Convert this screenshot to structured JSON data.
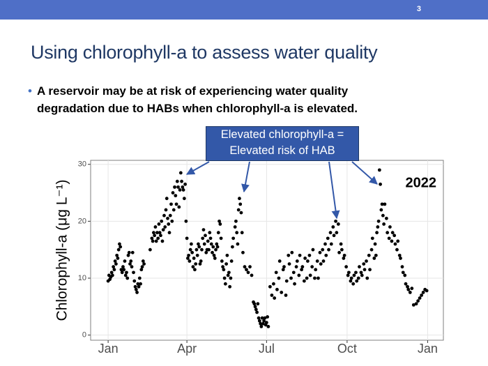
{
  "slide_number": "3",
  "title": "Using chlorophyll-a to assess water quality",
  "bullet": [
    "A reservoir may be at risk of experiencing water quality",
    "degradation due to HABs when chlorophyll-a is elevated."
  ],
  "callout": [
    "Elevated chlorophyll-a =",
    "Elevated risk of HAB"
  ],
  "chart_data": {
    "type": "scatter",
    "y_label": "Chlorophyll-a (μg L⁻¹)",
    "annotation": "2022",
    "color": "#000000",
    "grid": true,
    "xlim": [
      -20,
      383
    ],
    "ylim": [
      -0.9,
      30.7
    ],
    "xticks": [
      {
        "value": 0,
        "label": "Jan"
      },
      {
        "value": 90,
        "label": "Apr"
      },
      {
        "value": 181,
        "label": "Jul"
      },
      {
        "value": 273,
        "label": "Oct"
      },
      {
        "value": 365,
        "label": "Jan"
      }
    ],
    "yticks": [
      0,
      10,
      20,
      30
    ],
    "x": [
      0,
      1,
      2,
      3,
      4,
      5,
      6,
      7,
      8,
      9,
      10,
      11,
      12,
      13,
      14,
      15,
      16,
      17,
      18,
      19,
      20,
      21,
      22,
      23,
      24,
      25,
      26,
      27,
      28,
      29,
      30,
      31,
      32,
      33,
      34,
      35,
      36,
      37,
      38,
      39,
      40,
      41,
      48,
      50,
      51,
      52,
      53,
      54,
      55,
      56,
      57,
      58,
      59,
      60,
      61,
      62,
      63,
      64,
      65,
      66,
      67,
      68,
      69,
      70,
      71,
      72,
      73,
      74,
      75,
      76,
      77,
      78,
      79,
      80,
      81,
      82,
      83,
      84,
      85,
      86,
      87,
      88,
      89,
      90,
      91,
      92,
      93,
      94,
      95,
      96,
      97,
      98,
      99,
      100,
      101,
      102,
      103,
      104,
      105,
      106,
      107,
      108,
      109,
      110,
      111,
      112,
      113,
      114,
      115,
      116,
      117,
      118,
      119,
      120,
      121,
      122,
      123,
      124,
      125,
      126,
      127,
      128,
      129,
      130,
      131,
      132,
      133,
      134,
      135,
      136,
      137,
      138,
      139,
      140,
      141,
      142,
      143,
      145,
      146,
      147,
      148,
      149,
      150,
      151,
      152,
      153,
      154,
      156,
      158,
      160,
      162,
      164,
      166,
      167,
      168,
      169,
      170,
      171,
      172,
      173,
      174,
      175,
      176,
      177,
      178,
      179,
      180,
      181,
      182,
      183,
      185,
      187,
      189,
      190,
      192,
      193,
      195,
      196,
      198,
      200,
      201,
      203,
      204,
      206,
      207,
      209,
      210,
      212,
      213,
      215,
      216,
      218,
      219,
      221,
      222,
      224,
      225,
      227,
      228,
      230,
      231,
      233,
      234,
      236,
      237,
      239,
      240,
      242,
      243,
      245,
      246,
      248,
      249,
      251,
      252,
      254,
      255,
      257,
      258,
      260,
      261,
      263,
      264,
      266,
      267,
      269,
      270,
      272,
      274,
      275,
      277,
      278,
      280,
      281,
      283,
      284,
      286,
      287,
      289,
      290,
      292,
      293,
      295,
      296,
      298,
      299,
      301,
      302,
      304,
      305,
      306,
      307,
      308,
      309,
      310,
      311,
      312,
      313,
      314,
      315,
      316,
      318,
      319,
      321,
      322,
      324,
      325,
      327,
      328,
      330,
      331,
      333,
      334,
      336,
      337,
      339,
      340,
      342,
      343,
      345,
      347,
      349,
      352,
      354,
      356,
      358,
      360,
      362,
      364
    ],
    "values": [
      9.5,
      10.5,
      9.8,
      10.2,
      11,
      10.5,
      12,
      11.5,
      13,
      12.5,
      14,
      13.5,
      15,
      16,
      15.5,
      11.5,
      11,
      12,
      11.5,
      13,
      10.5,
      11,
      10,
      14,
      14.5,
      12.5,
      13,
      12,
      14.5,
      11,
      9.5,
      8.5,
      8,
      7.5,
      9,
      8.5,
      10,
      9,
      11.5,
      12,
      13,
      12.5,
      15,
      17,
      16.5,
      18,
      17.5,
      19,
      16.5,
      18,
      17,
      19.5,
      18,
      17.5,
      20,
      16.5,
      18.5,
      21,
      19,
      22,
      24,
      20.5,
      19.5,
      18,
      21,
      23,
      20,
      25,
      22,
      26,
      24.5,
      23,
      27,
      26,
      22.5,
      25.5,
      28.5,
      27,
      26,
      25.5,
      24,
      26.5,
      20,
      17,
      13.5,
      14,
      13,
      15,
      16,
      14.5,
      12,
      13.5,
      11.5,
      12.5,
      15,
      14,
      16,
      15.5,
      12.5,
      13,
      15,
      17,
      18.5,
      16,
      17.5,
      14.5,
      15,
      16.5,
      15,
      18,
      17,
      16,
      14.5,
      15.5,
      14,
      13.5,
      15,
      16,
      15.5,
      18,
      20,
      19.5,
      17,
      13,
      12,
      11.5,
      10,
      9,
      12.5,
      14,
      10.5,
      11,
      8.5,
      10,
      13,
      15.5,
      17,
      19,
      20,
      18,
      16,
      22,
      24,
      23,
      21.5,
      18,
      14.5,
      12,
      11.5,
      11,
      12,
      10.5,
      5.8,
      5.5,
      5,
      4.5,
      4,
      5.5,
      3,
      2.5,
      2,
      1.5,
      3,
      2,
      2.5,
      3,
      1.8,
      2.2,
      3.2,
      1.5,
      8.5,
      7,
      9,
      6.5,
      11,
      8,
      10,
      13,
      7.5,
      11.5,
      12,
      7,
      9.5,
      14,
      12.5,
      10,
      14.5,
      11,
      9,
      12,
      13,
      10.5,
      14,
      11.5,
      12,
      9.5,
      13.5,
      10,
      13,
      14,
      10.5,
      12,
      15,
      10,
      11.5,
      13,
      10,
      14.5,
      12.5,
      15,
      13,
      16,
      14,
      17,
      15,
      18,
      16,
      19,
      17.5,
      20,
      18,
      19.5,
      14.5,
      16,
      15,
      13.5,
      14,
      12,
      10.5,
      11,
      9.5,
      10,
      9,
      10.5,
      11,
      9.5,
      10,
      12,
      11,
      10.5,
      12.5,
      11.5,
      13,
      10,
      14,
      11.5,
      15,
      17,
      13.5,
      16,
      14,
      18,
      19,
      20,
      29,
      26.5,
      22,
      23,
      21,
      19.5,
      23,
      20.5,
      18,
      17,
      19,
      16.5,
      18,
      17.5,
      16,
      15,
      16.5,
      14,
      13.5,
      12,
      11,
      10.5,
      9,
      8.5,
      8,
      7.5,
      8.2,
      5.3,
      5.5,
      6,
      6.5,
      7,
      7.5,
      8,
      7.8
    ]
  }
}
